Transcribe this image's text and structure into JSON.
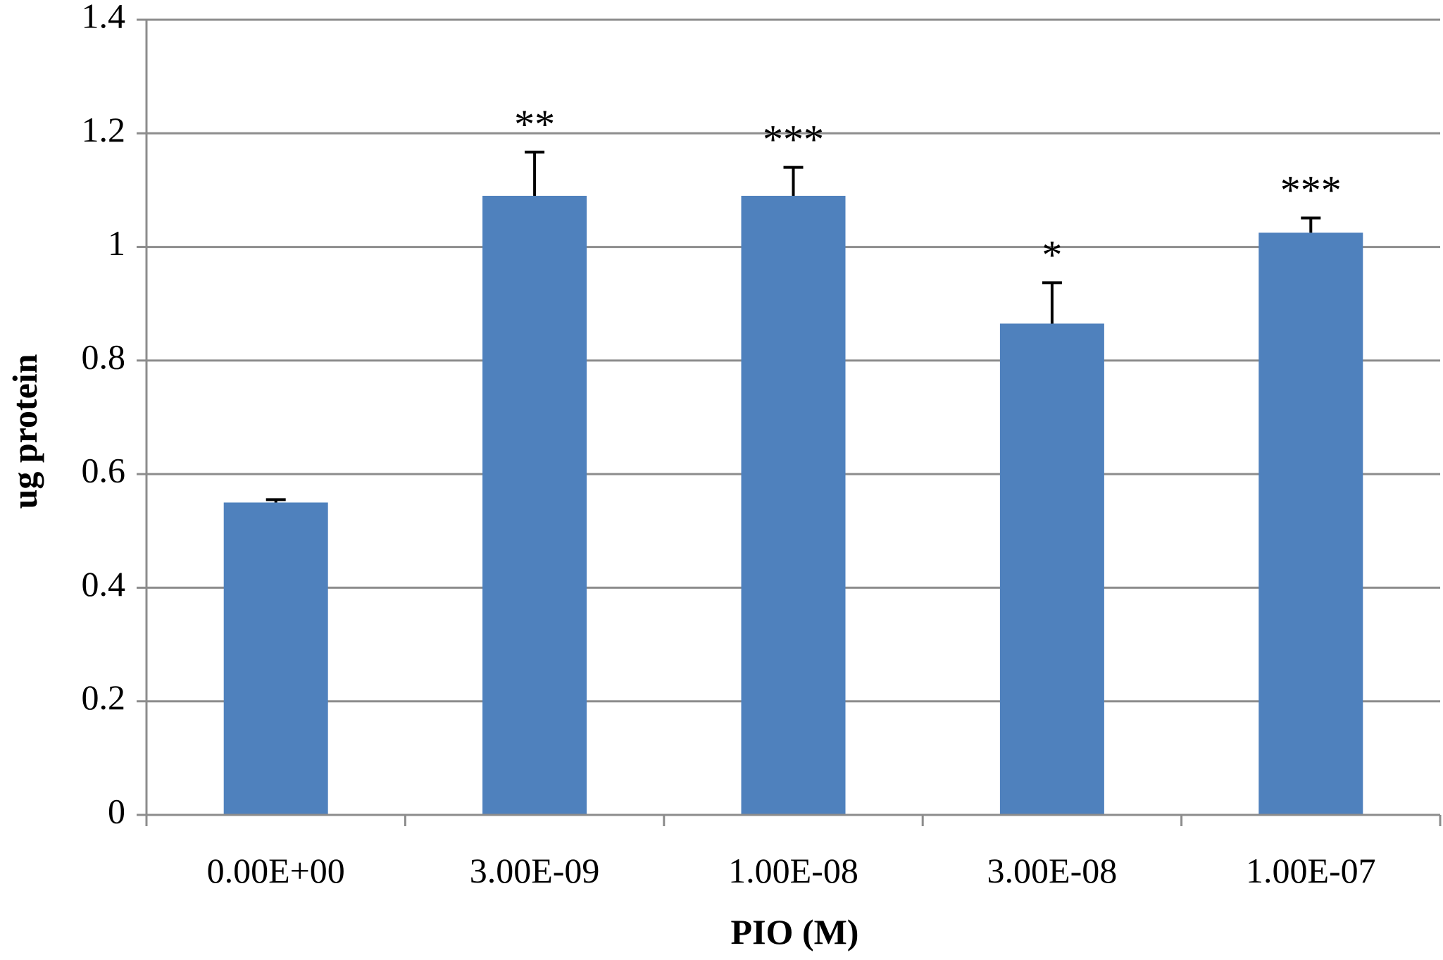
{
  "chart_data": {
    "type": "bar",
    "categories": [
      "0.00E+00",
      "3.00E-09",
      "1.00E-08",
      "3.00E-08",
      "1.00E-07"
    ],
    "values": [
      0.55,
      1.09,
      1.09,
      0.865,
      1.025
    ],
    "errors": [
      0.005,
      0.077,
      0.05,
      0.072,
      0.026
    ],
    "annotations": [
      "",
      "**",
      "***",
      "*",
      "***"
    ],
    "xlabel": "PIO (M)",
    "ylabel": "ug protein",
    "ylim": [
      0,
      1.4
    ],
    "yticks": [
      "0",
      "0.2",
      "0.4",
      "0.6",
      "0.8",
      "1",
      "1.2",
      "1.4"
    ],
    "grid": true,
    "legend": "none",
    "bar_color": "#4f81bd",
    "error_bar_color": "#000000"
  }
}
